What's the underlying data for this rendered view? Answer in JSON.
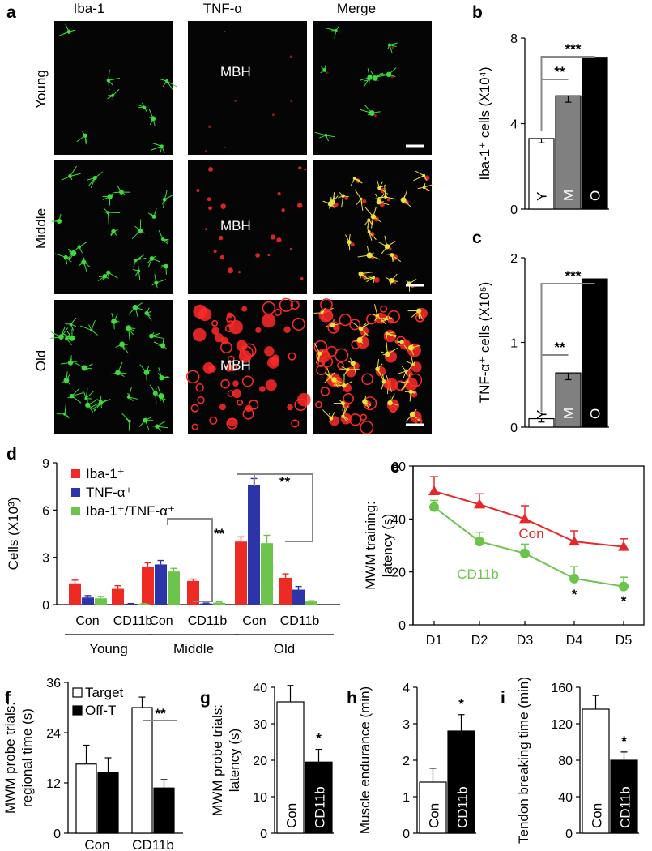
{
  "panel_a": {
    "letter": "a",
    "columns": [
      "Iba-1",
      "TNF-α",
      "Merge"
    ],
    "rows": [
      "Young",
      "Middle",
      "Old"
    ],
    "region_label": "MBH",
    "colors": {
      "green": "#3ddc3a",
      "red": "#ff2a2a",
      "yellow": "#e9e23a"
    }
  },
  "chart_data": [
    {
      "id": "b",
      "letter": "b",
      "type": "bar",
      "categories": [
        "Y",
        "M",
        "O"
      ],
      "values": [
        3.3,
        5.3,
        7.1
      ],
      "errors": [
        0.2,
        0.3,
        0.3
      ],
      "ylabel": "Iba-1⁺ cells (X10⁴)",
      "ylim": [
        0,
        8
      ],
      "yticks": [
        0,
        4,
        8
      ],
      "bar_colors": [
        "#ffffff",
        "#808080",
        "#000000"
      ],
      "significance": [
        "**",
        "***"
      ]
    },
    {
      "id": "c",
      "letter": "c",
      "type": "bar",
      "categories": [
        "Y",
        "M",
        "O"
      ],
      "values": [
        0.1,
        0.64,
        1.75
      ],
      "errors": [
        0.04,
        0.08,
        0.17
      ],
      "ylabel": "TNF-α⁺ cells (X10⁵)",
      "ylim": [
        0,
        2
      ],
      "yticks": [
        0,
        1,
        2
      ],
      "bar_colors": [
        "#ffffff",
        "#808080",
        "#000000"
      ],
      "significance": [
        "**",
        "***"
      ]
    },
    {
      "id": "d",
      "letter": "d",
      "type": "bar",
      "groups": [
        "Young",
        "Middle",
        "Old"
      ],
      "subgroups": [
        "Con",
        "CD11b"
      ],
      "series": [
        {
          "name": "Iba-1⁺",
          "color": "#ee2a24",
          "values": [
            1.35,
            1.0,
            2.4,
            1.5,
            4.0,
            1.7
          ],
          "errors": [
            0.2,
            0.2,
            0.25,
            0.12,
            0.3,
            0.25
          ]
        },
        {
          "name": "TNF-α⁺",
          "color": "#2b35a8",
          "values": [
            0.45,
            0.05,
            2.55,
            0.07,
            7.6,
            0.95
          ],
          "errors": [
            0.12,
            0.02,
            0.25,
            0.03,
            0.4,
            0.2
          ]
        },
        {
          "name": "Iba-1⁺/TNF-α⁺",
          "color": "#6cc44a",
          "values": [
            0.4,
            0.05,
            2.1,
            0.12,
            3.9,
            0.2
          ],
          "errors": [
            0.12,
            0.02,
            0.2,
            0.05,
            0.5,
            0.05
          ]
        }
      ],
      "ylabel": "Cells (X10³)",
      "ylim": [
        0,
        9
      ],
      "yticks": [
        0,
        3,
        6,
        9
      ],
      "legend": "top-left",
      "significance": [
        "**",
        "**"
      ]
    },
    {
      "id": "e",
      "letter": "e",
      "type": "line",
      "x": [
        "D1",
        "D2",
        "D3",
        "D4",
        "D5"
      ],
      "series": [
        {
          "name": "Con",
          "color": "#e8272a",
          "marker": "triangle",
          "values": [
            50.5,
            45.5,
            40,
            31.5,
            29.5
          ],
          "errors": [
            5.5,
            4,
            5,
            4,
            3
          ]
        },
        {
          "name": "CD11b",
          "color": "#6cc44a",
          "marker": "circle",
          "values": [
            44.5,
            31.5,
            27,
            17.5,
            14.5
          ],
          "errors": [
            2.5,
            3.5,
            3.5,
            4.5,
            3.5
          ]
        }
      ],
      "ylabel": "MWM training: latency (s)",
      "ylim": [
        0,
        60
      ],
      "yticks": [
        0,
        20,
        40,
        60
      ],
      "significance": [
        "*",
        "*"
      ]
    },
    {
      "id": "f",
      "letter": "f",
      "type": "bar",
      "categories": [
        "Con",
        "CD11b"
      ],
      "series": [
        {
          "name": "Target",
          "color": "#ffffff",
          "values": [
            16.5,
            30
          ],
          "errors": [
            4.5,
            2.5
          ]
        },
        {
          "name": "Off-T",
          "color": "#000000",
          "values": [
            14.5,
            10.8
          ],
          "errors": [
            3.5,
            2
          ]
        }
      ],
      "ylabel": "MWM probe trials: regional time (s)",
      "ylim": [
        0,
        36
      ],
      "yticks": [
        0,
        12,
        24,
        36
      ],
      "legend": "top-left",
      "significance": [
        "**"
      ]
    },
    {
      "id": "g",
      "letter": "g",
      "type": "bar",
      "categories": [
        "Con",
        "CD11b"
      ],
      "values": [
        36,
        19.5
      ],
      "errors": [
        4.5,
        3.5
      ],
      "bar_colors": [
        "#ffffff",
        "#000000"
      ],
      "ylabel": "MWM probe trials: latency (s)",
      "ylim": [
        0,
        40
      ],
      "yticks": [
        0,
        10,
        20,
        30,
        40
      ],
      "significance": [
        "*"
      ]
    },
    {
      "id": "h",
      "letter": "h",
      "type": "bar",
      "categories": [
        "Con",
        "CD11b"
      ],
      "values": [
        1.4,
        2.8
      ],
      "errors": [
        0.38,
        0.45
      ],
      "bar_colors": [
        "#ffffff",
        "#000000"
      ],
      "ylabel": "Muscle endurance (min)",
      "ylim": [
        0,
        4
      ],
      "yticks": [
        0,
        1,
        2,
        3,
        4
      ],
      "significance": [
        "*"
      ]
    },
    {
      "id": "i",
      "letter": "i",
      "type": "bar",
      "categories": [
        "Con",
        "CD11b"
      ],
      "values": [
        136,
        80
      ],
      "errors": [
        15,
        9
      ],
      "bar_colors": [
        "#ffffff",
        "#000000"
      ],
      "ylabel": "Tendon breaking time (min)",
      "ylim": [
        0,
        160
      ],
      "yticks": [
        0,
        40,
        80,
        120,
        160
      ],
      "significance": [
        "*"
      ]
    }
  ]
}
